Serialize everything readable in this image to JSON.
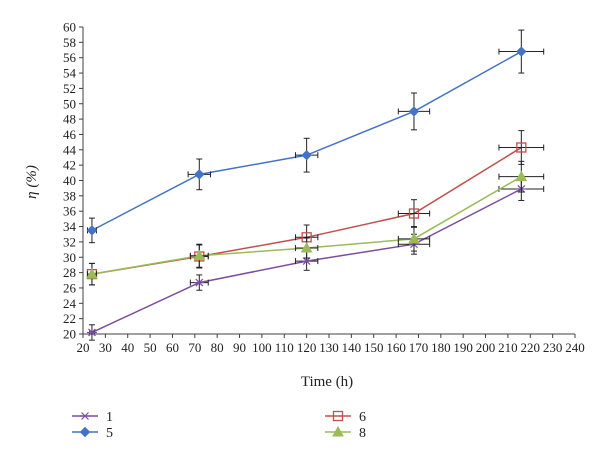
{
  "chart_data": {
    "type": "line",
    "xlabel": "Time (h)",
    "ylabel": "η (%)",
    "xlim": [
      20,
      240
    ],
    "ylim": [
      20,
      60
    ],
    "x_ticks": [
      "20",
      "30",
      "40",
      "50",
      "60",
      "70",
      "80",
      "90",
      "100",
      "110",
      "120",
      "130",
      "140",
      "150",
      "160",
      "170",
      "180",
      "190",
      "200",
      "210",
      "220",
      "230",
      "240"
    ],
    "y_ticks": [
      "20",
      "22",
      "24",
      "26",
      "28",
      "30",
      "32",
      "34",
      "36",
      "38",
      "40",
      "42",
      "44",
      "46",
      "48",
      "50",
      "52",
      "54",
      "56",
      "58",
      "60"
    ],
    "grid": false,
    "legend_position": "bottom",
    "series": [
      {
        "name": "1",
        "marker": "star",
        "color": "#7b4f9d",
        "x": [
          24,
          72,
          120,
          168,
          216
        ],
        "y": [
          20.2,
          26.7,
          29.5,
          31.7,
          38.9
        ],
        "y_err": [
          1.0,
          1.0,
          1.2,
          1.3,
          1.5
        ],
        "x_err": [
          1,
          4,
          5,
          7,
          10
        ]
      },
      {
        "name": "5",
        "marker": "diamond",
        "color": "#4472c4",
        "x": [
          24,
          72,
          120,
          168,
          216
        ],
        "y": [
          33.5,
          40.8,
          43.3,
          49.0,
          56.8
        ],
        "y_err": [
          1.6,
          2.0,
          2.2,
          2.4,
          2.8
        ],
        "x_err": [
          2,
          5,
          5,
          7,
          10
        ]
      },
      {
        "name": "6",
        "marker": "square-open",
        "color": "#c0504d",
        "x": [
          24,
          72,
          120,
          168,
          216
        ],
        "y": [
          27.8,
          30.1,
          32.6,
          35.7,
          44.3
        ],
        "y_err": [
          1.4,
          1.5,
          1.6,
          1.8,
          2.2
        ],
        "x_err": [
          2,
          4,
          5,
          7,
          10
        ]
      },
      {
        "name": "8",
        "marker": "triangle",
        "color": "#9bbb59",
        "x": [
          24,
          72,
          120,
          168,
          216
        ],
        "y": [
          27.8,
          30.2,
          31.2,
          32.4,
          40.5
        ],
        "y_err": [
          1.4,
          1.5,
          1.3,
          1.6,
          2.0
        ],
        "x_err": [
          2,
          4,
          5,
          7,
          10
        ]
      }
    ],
    "legend_layout": [
      [
        "1",
        "6"
      ],
      [
        "5",
        "8"
      ]
    ]
  }
}
